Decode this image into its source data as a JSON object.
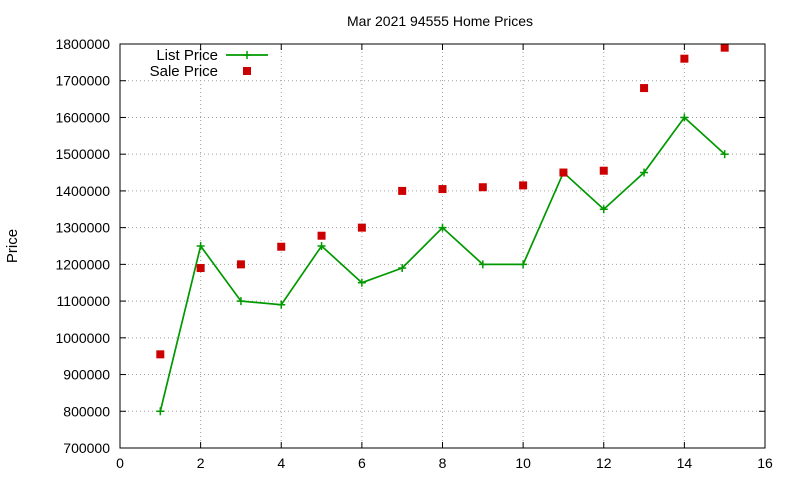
{
  "chart_data": {
    "type": "line",
    "title": "Mar 2021 94555 Home Prices",
    "xlabel": "",
    "ylabel": "Price",
    "xlim": [
      0,
      16
    ],
    "ylim": [
      700000,
      1800000
    ],
    "xticks": [
      0,
      2,
      4,
      6,
      8,
      10,
      12,
      14,
      16
    ],
    "yticks": [
      700000,
      800000,
      900000,
      1000000,
      1100000,
      1200000,
      1300000,
      1400000,
      1500000,
      1600000,
      1700000,
      1800000
    ],
    "grid": true,
    "legend_position": "top-left",
    "series": [
      {
        "name": "List Price",
        "style": "line+cross",
        "color": "#009900",
        "x": [
          1,
          2,
          3,
          4,
          5,
          6,
          7,
          8,
          9,
          10,
          11,
          12,
          13,
          14,
          15
        ],
        "y": [
          800000,
          1250000,
          1100000,
          1090000,
          1250000,
          1150000,
          1190000,
          1300000,
          1200000,
          1200000,
          1450000,
          1350000,
          1450000,
          1600000,
          1500000
        ]
      },
      {
        "name": "Sale Price",
        "style": "square",
        "color": "#cc0000",
        "x": [
          1,
          2,
          3,
          4,
          5,
          6,
          7,
          8,
          9,
          10,
          11,
          12,
          13,
          14,
          15
        ],
        "y": [
          955000,
          1190000,
          1200000,
          1248000,
          1278000,
          1300000,
          1400000,
          1405000,
          1410000,
          1415000,
          1450000,
          1455000,
          1680000,
          1760000,
          1790000
        ]
      }
    ]
  }
}
